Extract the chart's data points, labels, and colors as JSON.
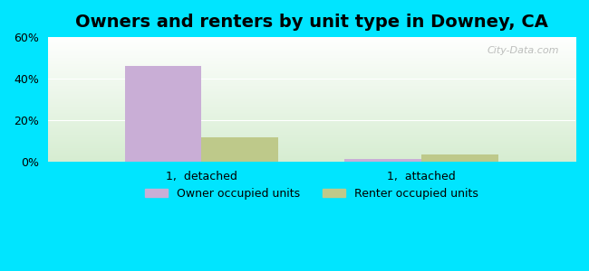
{
  "title": "Owners and renters by unit type in Downey, CA",
  "categories": [
    "1,  detached",
    "1,  attached"
  ],
  "owner_values": [
    46.0,
    1.5
  ],
  "renter_values": [
    12.0,
    3.5
  ],
  "owner_color": "#c9aed6",
  "renter_color": "#bec98a",
  "ylim": [
    0,
    60
  ],
  "yticks": [
    0,
    20,
    40,
    60
  ],
  "yticklabels": [
    "0%",
    "20%",
    "40%",
    "60%"
  ],
  "bar_width": 0.35,
  "background_outer": "#00e5ff",
  "background_inner_top": "#ffffff",
  "background_inner_bottom": "#d4edda",
  "watermark": "City-Data.com",
  "legend_owner": "Owner occupied units",
  "legend_renter": "Renter occupied units",
  "title_fontsize": 14,
  "tick_fontsize": 9,
  "legend_fontsize": 9
}
